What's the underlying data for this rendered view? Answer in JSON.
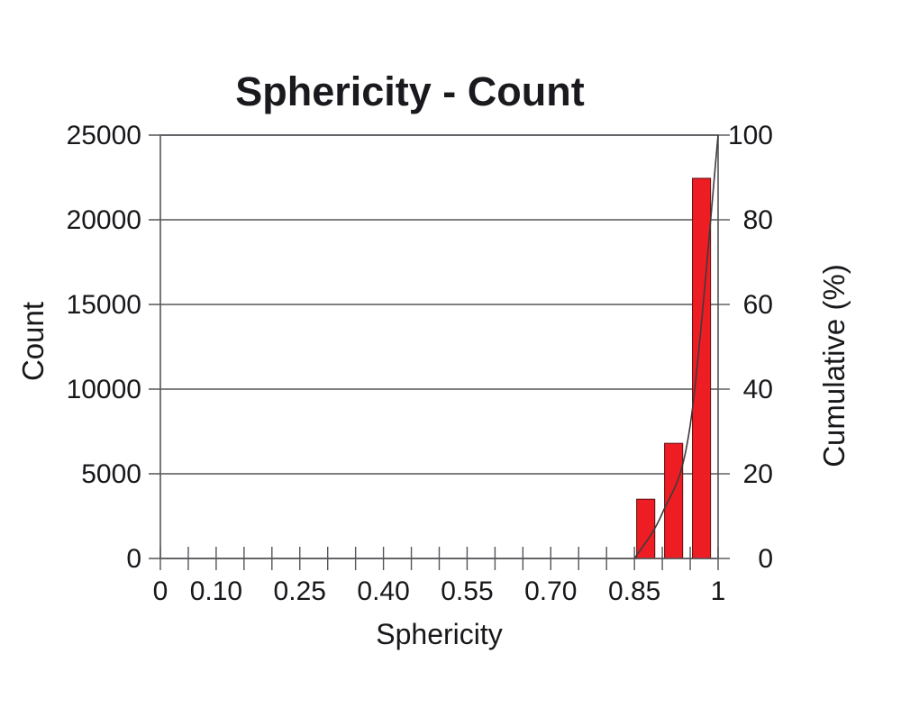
{
  "chart_data": {
    "type": "bar",
    "subtype": "histogram-with-cumulative-line",
    "title": "Sphericity - Count",
    "xlabel": "Sphericity",
    "ylabel": "Count",
    "y2label": "Cumulative (%)",
    "xlim": [
      0,
      1
    ],
    "ylim": [
      0,
      25000
    ],
    "y2lim": [
      0,
      100
    ],
    "grid": "horizontal-major",
    "legend": "none",
    "x_minor_tick_step": 0.05,
    "x_ticks": [
      {
        "value": 0,
        "label": "0"
      },
      {
        "value": 0.1,
        "label": "0.10"
      },
      {
        "value": 0.25,
        "label": "0.25"
      },
      {
        "value": 0.4,
        "label": "0.40"
      },
      {
        "value": 0.55,
        "label": "0.55"
      },
      {
        "value": 0.7,
        "label": "0.70"
      },
      {
        "value": 0.85,
        "label": "0.85"
      },
      {
        "value": 1,
        "label": "1"
      }
    ],
    "y_ticks": [
      {
        "value": 0,
        "label": "0"
      },
      {
        "value": 5000,
        "label": "5000"
      },
      {
        "value": 10000,
        "label": "10000"
      },
      {
        "value": 15000,
        "label": "15000"
      },
      {
        "value": 20000,
        "label": "20000"
      },
      {
        "value": 25000,
        "label": "25000"
      }
    ],
    "y2_ticks": [
      {
        "value": 0,
        "label": "0"
      },
      {
        "value": 20,
        "label": "20"
      },
      {
        "value": 40,
        "label": "40"
      },
      {
        "value": 60,
        "label": "60"
      },
      {
        "value": 80,
        "label": "80"
      },
      {
        "value": 100,
        "label": "100"
      }
    ],
    "bins": [
      {
        "x0": 0.85,
        "x1": 0.9,
        "count": 3500
      },
      {
        "x0": 0.9,
        "x1": 0.95,
        "count": 6800
      },
      {
        "x0": 0.95,
        "x1": 1.0,
        "count": 22450
      }
    ],
    "cumulative_pct": [
      {
        "x": 0.85,
        "pct": 0
      },
      {
        "x": 0.9,
        "pct": 10.7
      },
      {
        "x": 0.95,
        "pct": 31.5
      },
      {
        "x": 1.0,
        "pct": 100
      }
    ],
    "colors": {
      "bar_fill": "#ee1c23",
      "bar_border": "#5a0f12",
      "line": "#3c3c3c",
      "axis": "#55555a",
      "grid": "#55555a",
      "text": "#18181c",
      "background": "#ffffff"
    }
  }
}
